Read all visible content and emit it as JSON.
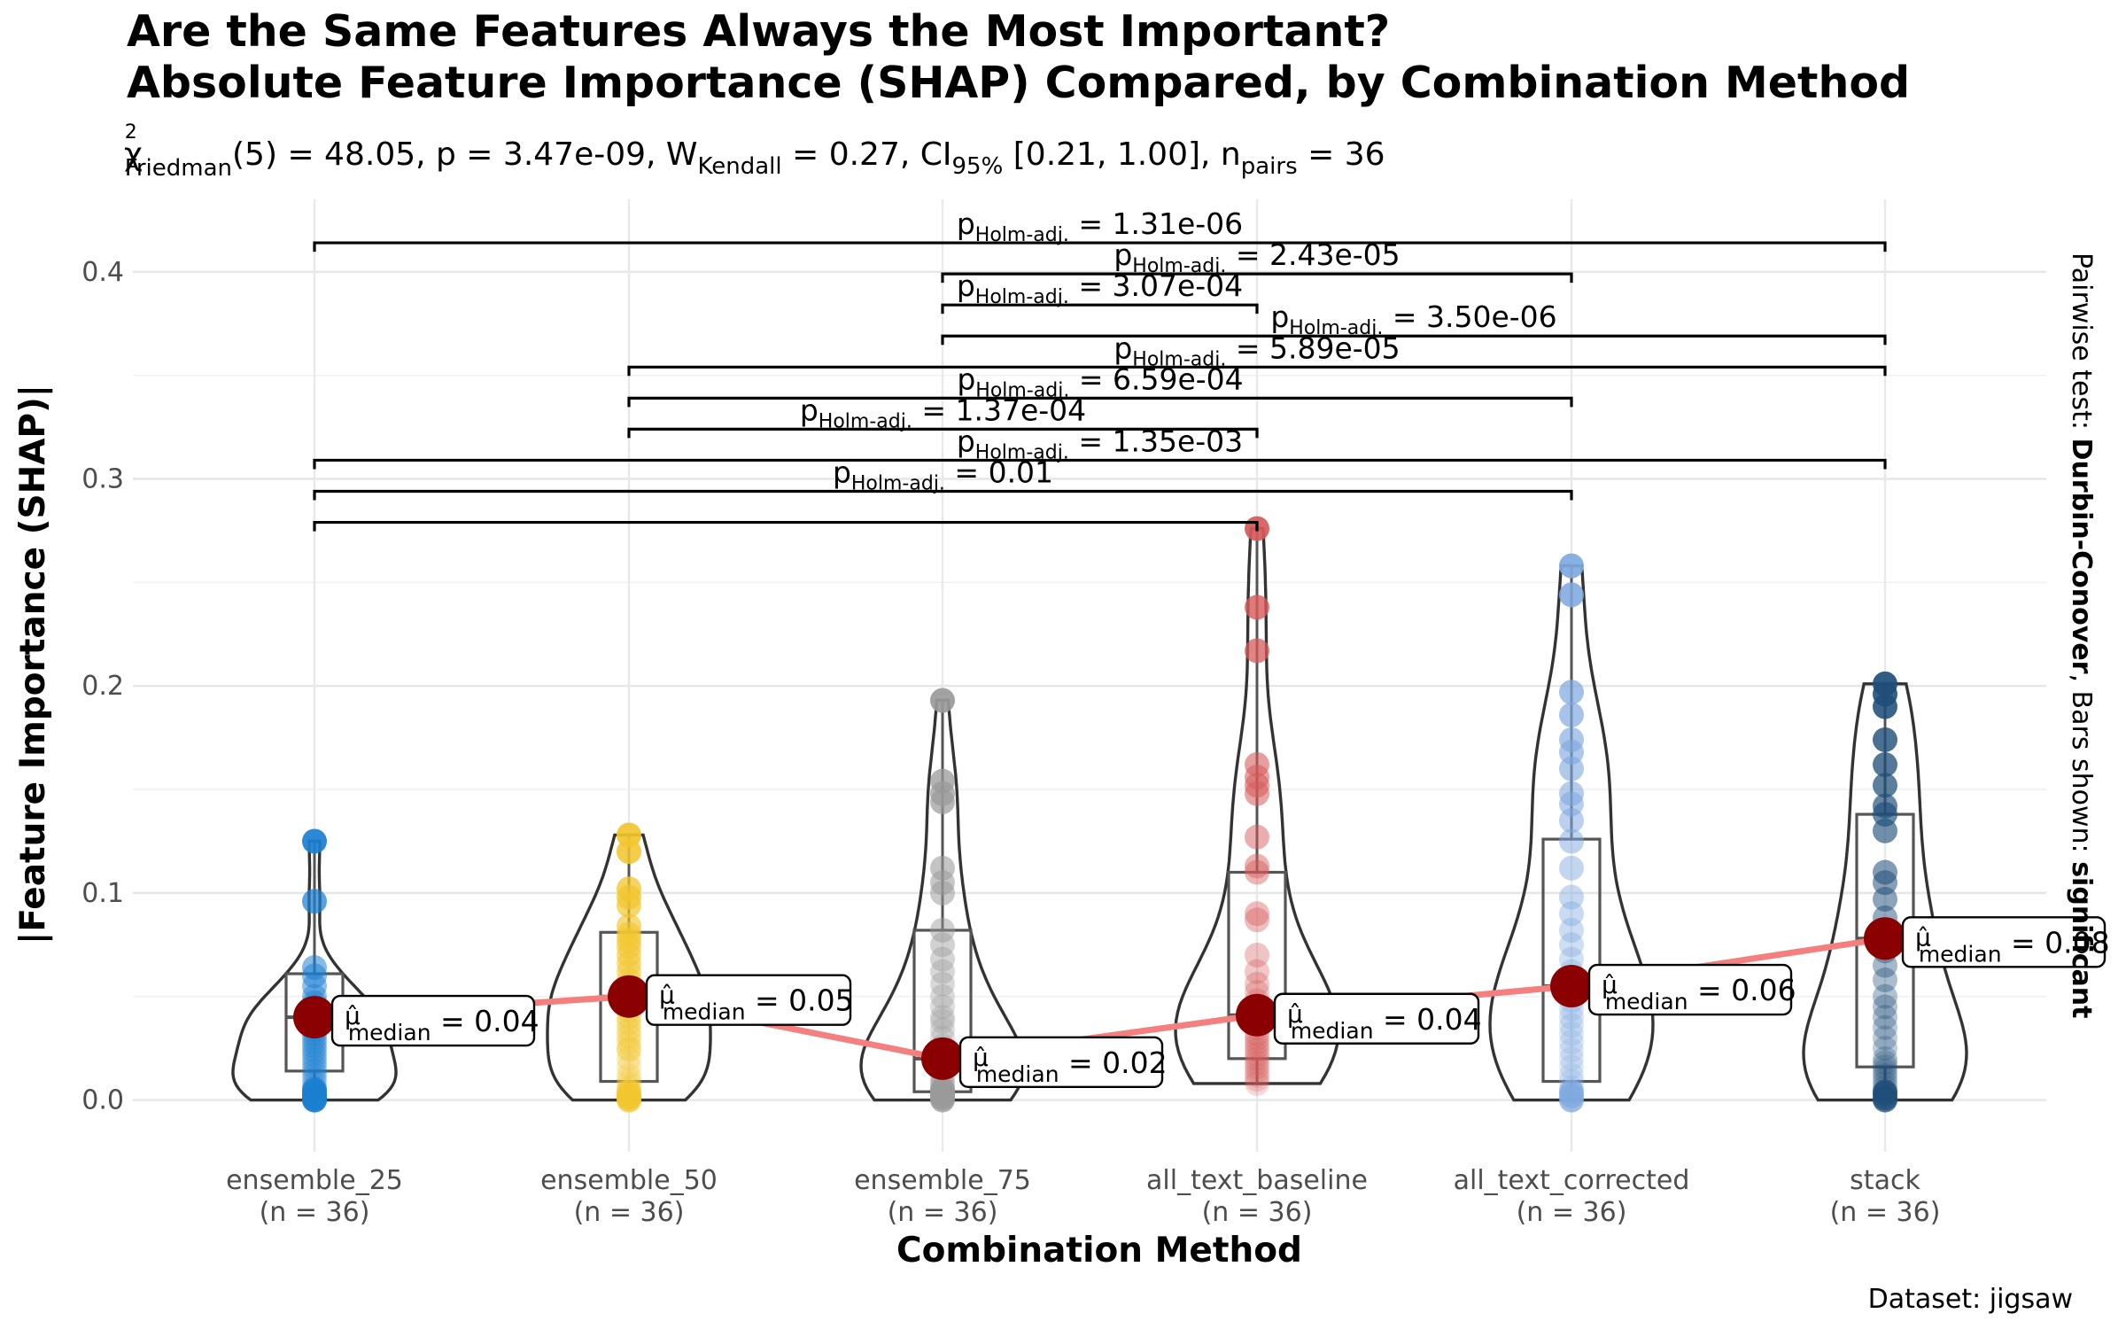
{
  "chart_data": {
    "type": "violin",
    "title_line1": "Are the Same Features Always the Most Important?",
    "title_line2": "Absolute Feature Importance (SHAP) Compared, by Combination Method",
    "subtitle": {
      "chi_sym": "χ",
      "chi_sup": "2",
      "chi_sub": "Friedman",
      "df_stat": "(5) = 48.05, p = 3.47e-09, ",
      "w_sym": "W",
      "w_sub": "Kendall",
      "w_val": " = 0.27, CI",
      "ci_sub": "95%",
      "ci_val": " [0.21, 1.00], n",
      "n_sub": "pairs",
      "n_val": " = 36"
    },
    "xlabel": "Combination Method",
    "ylabel": "|Feature Importance (SHAP)|",
    "ylim": [
      -0.025,
      0.435
    ],
    "yticks": [
      0.0,
      0.1,
      0.2,
      0.3,
      0.4
    ],
    "ytick_labels": [
      "0.0",
      "0.1",
      "0.2",
      "0.3",
      "0.4"
    ],
    "grid": true,
    "categories": [
      "ensemble_25",
      "ensemble_50",
      "ensemble_75",
      "all_text_baseline",
      "all_text_corrected",
      "stack"
    ],
    "category_n": [
      "(n = 36)",
      "(n = 36)",
      "(n = 36)",
      "(n = 36)",
      "(n = 36)",
      "(n = 36)"
    ],
    "colors": [
      "#1b7fd1",
      "#f2c62e",
      "#9a9a9a",
      "#d65a5a",
      "#7fa9e0",
      "#1f4e79"
    ],
    "median_color": "#8b0000",
    "median_line_color": "#f37f7f",
    "groups": [
      {
        "points": [
          0.125,
          0.096,
          0.064,
          0.06,
          0.055,
          0.05,
          0.047,
          0.045,
          0.043,
          0.042,
          0.04,
          0.038,
          0.036,
          0.034,
          0.032,
          0.03,
          0.028,
          0.026,
          0.024,
          0.022,
          0.02,
          0.018,
          0.016,
          0.014,
          0.012,
          0.01,
          0.008,
          0.006,
          0.005,
          0.004,
          0.003,
          0.002,
          0.001,
          0.001,
          0.0,
          0.0
        ],
        "box": {
          "q1": 0.014,
          "median": 0.04,
          "q3": 0.061,
          "min": 0.0,
          "max": 0.125
        },
        "median": 0.04,
        "median_label": "0.04"
      },
      {
        "points": [
          0.128,
          0.12,
          0.102,
          0.098,
          0.094,
          0.084,
          0.08,
          0.077,
          0.074,
          0.07,
          0.066,
          0.062,
          0.058,
          0.055,
          0.052,
          0.05,
          0.048,
          0.046,
          0.043,
          0.04,
          0.037,
          0.034,
          0.031,
          0.028,
          0.025,
          0.024,
          0.02,
          0.016,
          0.012,
          0.01,
          0.008,
          0.006,
          0.004,
          0.002,
          0.001,
          0.0
        ],
        "box": {
          "q1": 0.009,
          "median": 0.05,
          "q3": 0.081,
          "min": 0.0,
          "max": 0.128
        },
        "median": 0.05,
        "median_label": "0.05"
      },
      {
        "points": [
          0.193,
          0.154,
          0.148,
          0.144,
          0.112,
          0.105,
          0.1,
          0.082,
          0.075,
          0.068,
          0.062,
          0.056,
          0.05,
          0.045,
          0.04,
          0.038,
          0.034,
          0.03,
          0.026,
          0.022,
          0.02,
          0.018,
          0.016,
          0.014,
          0.012,
          0.01,
          0.009,
          0.008,
          0.007,
          0.006,
          0.005,
          0.004,
          0.003,
          0.002,
          0.001,
          0.0
        ],
        "box": {
          "q1": 0.004,
          "median": 0.02,
          "q3": 0.082,
          "min": 0.0,
          "max": 0.193
        },
        "median": 0.02,
        "median_label": "0.02"
      },
      {
        "points": [
          0.276,
          0.238,
          0.217,
          0.162,
          0.156,
          0.152,
          0.148,
          0.127,
          0.113,
          0.11,
          0.09,
          0.087,
          0.07,
          0.062,
          0.056,
          0.052,
          0.048,
          0.045,
          0.043,
          0.041,
          0.039,
          0.037,
          0.035,
          0.032,
          0.03,
          0.028,
          0.026,
          0.024,
          0.022,
          0.02,
          0.018,
          0.016,
          0.014,
          0.012,
          0.01,
          0.008
        ],
        "box": {
          "q1": 0.02,
          "median": 0.041,
          "q3": 0.11,
          "min": 0.008,
          "max": 0.276
        },
        "median": 0.041,
        "median_label": "0.04"
      },
      {
        "points": [
          0.258,
          0.244,
          0.197,
          0.186,
          0.174,
          0.168,
          0.16,
          0.148,
          0.143,
          0.135,
          0.125,
          0.112,
          0.098,
          0.09,
          0.082,
          0.075,
          0.068,
          0.062,
          0.058,
          0.055,
          0.052,
          0.048,
          0.044,
          0.04,
          0.036,
          0.032,
          0.028,
          0.024,
          0.02,
          0.016,
          0.012,
          0.009,
          0.006,
          0.004,
          0.002,
          0.0
        ],
        "box": {
          "q1": 0.009,
          "median": 0.055,
          "q3": 0.126,
          "min": 0.0,
          "max": 0.258
        },
        "median": 0.055,
        "median_label": "0.06"
      },
      {
        "points": [
          0.201,
          0.196,
          0.19,
          0.174,
          0.162,
          0.152,
          0.142,
          0.138,
          0.13,
          0.11,
          0.105,
          0.097,
          0.088,
          0.08,
          0.078,
          0.072,
          0.065,
          0.058,
          0.05,
          0.045,
          0.04,
          0.035,
          0.03,
          0.025,
          0.02,
          0.018,
          0.016,
          0.014,
          0.012,
          0.01,
          0.008,
          0.006,
          0.004,
          0.003,
          0.001,
          0.0
        ],
        "box": {
          "q1": 0.016,
          "median": 0.078,
          "q3": 0.138,
          "min": 0.0,
          "max": 0.201
        },
        "median": 0.078,
        "median_label": "0.08"
      }
    ],
    "median_prefix_sym": "μ̂",
    "median_prefix_sub": "median",
    "pairwise": [
      {
        "from": 1,
        "to": 6,
        "y": 0.414,
        "p": "1.31e-06"
      },
      {
        "from": 3,
        "to": 5,
        "y": 0.399,
        "p": "2.43e-05"
      },
      {
        "from": 3,
        "to": 4,
        "y": 0.384,
        "p": "3.07e-04"
      },
      {
        "from": 3,
        "to": 6,
        "y": 0.369,
        "p": "3.50e-06"
      },
      {
        "from": 2,
        "to": 6,
        "y": 0.354,
        "p": "5.89e-05"
      },
      {
        "from": 2,
        "to": 5,
        "y": 0.339,
        "p": "6.59e-04"
      },
      {
        "from": 2,
        "to": 4,
        "y": 0.324,
        "p": "1.37e-04"
      },
      {
        "from": 1,
        "to": 6,
        "y": 0.309,
        "p": "1.35e-03"
      },
      {
        "from": 1,
        "to": 5,
        "y": 0.294,
        "p": "0.01"
      },
      {
        "from": 1,
        "to": 4,
        "y": 0.279,
        "p": ""
      }
    ],
    "p_symbol": "p",
    "p_sub": "Holm-adj.",
    "side_text": {
      "prefix": "Pairwise test: ",
      "test": "Durbin-Conover",
      "mid": ", Bars shown: ",
      "bars": "significant"
    },
    "caption": "Dataset:  jigsaw"
  }
}
